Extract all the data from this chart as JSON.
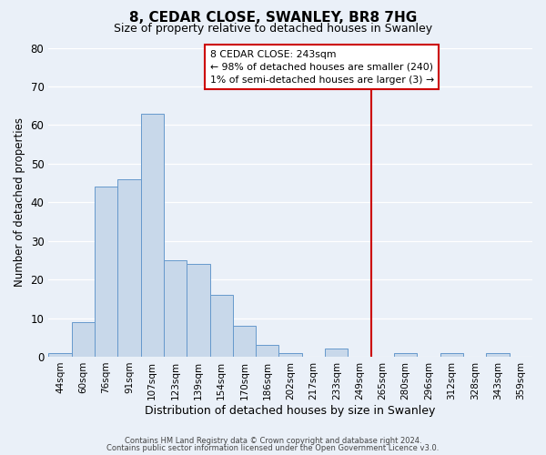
{
  "title": "8, CEDAR CLOSE, SWANLEY, BR8 7HG",
  "subtitle": "Size of property relative to detached houses in Swanley",
  "xlabel": "Distribution of detached houses by size in Swanley",
  "ylabel": "Number of detached properties",
  "bar_labels": [
    "44sqm",
    "60sqm",
    "76sqm",
    "91sqm",
    "107sqm",
    "123sqm",
    "139sqm",
    "154sqm",
    "170sqm",
    "186sqm",
    "202sqm",
    "217sqm",
    "233sqm",
    "249sqm",
    "265sqm",
    "280sqm",
    "296sqm",
    "312sqm",
    "328sqm",
    "343sqm",
    "359sqm"
  ],
  "bar_values": [
    1,
    9,
    44,
    46,
    63,
    25,
    24,
    16,
    8,
    3,
    1,
    0,
    2,
    0,
    0,
    1,
    0,
    1,
    0,
    1,
    0
  ],
  "bar_color": "#c8d8ea",
  "bar_edge_color": "#6699cc",
  "ylim": [
    0,
    80
  ],
  "yticks": [
    0,
    10,
    20,
    30,
    40,
    50,
    60,
    70,
    80
  ],
  "vline_x": 13.5,
  "vline_color": "#cc0000",
  "annotation_title": "8 CEDAR CLOSE: 243sqm",
  "annotation_line1": "← 98% of detached houses are smaller (240)",
  "annotation_line2": "1% of semi-detached houses are larger (3) →",
  "annotation_box_color": "#cc0000",
  "bg_color": "#eaf0f8",
  "grid_color": "#ffffff",
  "footer1": "Contains HM Land Registry data © Crown copyright and database right 2024.",
  "footer2": "Contains public sector information licensed under the Open Government Licence v3.0."
}
